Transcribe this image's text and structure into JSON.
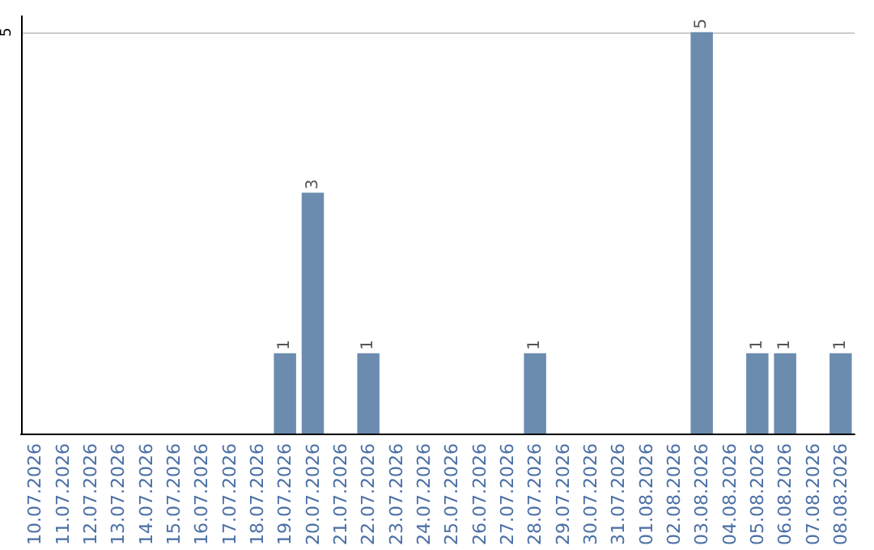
{
  "chart_data": {
    "type": "bar",
    "categories": [
      "10.07.2026",
      "11.07.2026",
      "12.07.2026",
      "13.07.2026",
      "14.07.2026",
      "15.07.2026",
      "16.07.2026",
      "17.07.2026",
      "18.07.2026",
      "19.07.2026",
      "20.07.2026",
      "21.07.2026",
      "22.07.2026",
      "23.07.2026",
      "24.07.2026",
      "25.07.2026",
      "26.07.2026",
      "27.07.2026",
      "28.07.2026",
      "29.07.2026",
      "30.07.2026",
      "31.07.2026",
      "01.08.2026",
      "02.08.2026",
      "03.08.2026",
      "04.08.2026",
      "05.08.2026",
      "06.08.2026",
      "07.08.2026",
      "08.08.2026"
    ],
    "values": [
      0,
      0,
      0,
      0,
      0,
      0,
      0,
      0,
      0,
      1,
      3,
      0,
      1,
      0,
      0,
      0,
      0,
      0,
      1,
      0,
      0,
      0,
      0,
      0,
      5,
      0,
      1,
      1,
      0,
      1
    ],
    "value_labels": [
      null,
      null,
      null,
      null,
      null,
      null,
      null,
      null,
      null,
      "1",
      "3",
      null,
      "1",
      null,
      null,
      null,
      null,
      null,
      "1",
      null,
      null,
      null,
      null,
      null,
      "5",
      null,
      "1",
      "1",
      null,
      "1"
    ],
    "color": "#6b8cae",
    "ylim": [
      0,
      5.2
    ],
    "yticks": [
      5
    ],
    "grid": "y"
  }
}
